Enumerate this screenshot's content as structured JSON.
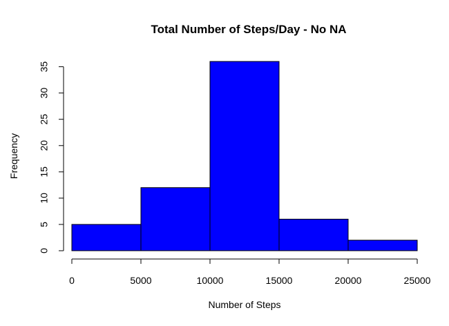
{
  "chart_data": {
    "type": "bar",
    "title": "Total Number of Steps/Day - No NA",
    "xlabel": "Number of Steps",
    "ylabel": "Frequency",
    "bins": [
      {
        "from": 0,
        "to": 5000,
        "count": 5
      },
      {
        "from": 5000,
        "to": 10000,
        "count": 12
      },
      {
        "from": 10000,
        "to": 15000,
        "count": 36
      },
      {
        "from": 15000,
        "to": 20000,
        "count": 6
      },
      {
        "from": 20000,
        "to": 25000,
        "count": 2
      }
    ],
    "x_ticks": [
      0,
      5000,
      10000,
      15000,
      20000,
      25000
    ],
    "y_ticks": [
      0,
      5,
      10,
      15,
      20,
      25,
      30,
      35
    ],
    "xlim": [
      0,
      25000
    ],
    "ylim": [
      0,
      36
    ],
    "bar_color": "#0000ff",
    "grid": false
  }
}
